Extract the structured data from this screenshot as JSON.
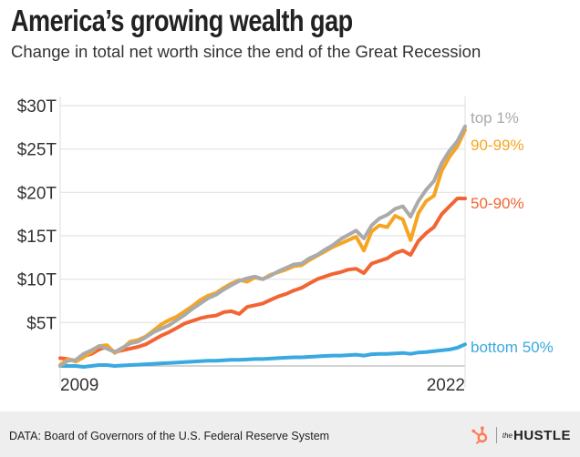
{
  "header": {
    "title": "America’s growing wealth gap",
    "subtitle": "Change in total net worth since the end of the Great Recession"
  },
  "footer": {
    "source": "DATA: Board of Governors of the U.S. Federal Reserve System",
    "brand_small": "the",
    "brand_big": "HUSTLE",
    "brand_icon": "hubspot-sprocket-icon",
    "brand_icon_color": "#ff7a59"
  },
  "chart_data": {
    "type": "line",
    "title": "America’s growing wealth gap",
    "subtitle": "Change in total net worth since the end of the Great Recession",
    "xlabel": "",
    "ylabel": "",
    "x_tick_labels": [
      "2009",
      "2022"
    ],
    "y_tick_labels": [
      "$5T",
      "$10T",
      "$15T",
      "$20T",
      "$25T",
      "$30T"
    ],
    "y_ticks": [
      5,
      10,
      15,
      20,
      25,
      30
    ],
    "xlim": [
      2009.0,
      2022.0
    ],
    "ylim": [
      0,
      30
    ],
    "y_unit": "trillion USD",
    "grid": "horizontal",
    "legend": "inline labels at right end of lines",
    "x": [
      2009.0,
      2009.25,
      2009.5,
      2009.75,
      2010.0,
      2010.25,
      2010.5,
      2010.75,
      2011.0,
      2011.25,
      2011.5,
      2011.75,
      2012.0,
      2012.25,
      2012.5,
      2012.75,
      2013.0,
      2013.25,
      2013.5,
      2013.75,
      2014.0,
      2014.25,
      2014.5,
      2014.75,
      2015.0,
      2015.25,
      2015.5,
      2015.75,
      2016.0,
      2016.25,
      2016.5,
      2016.75,
      2017.0,
      2017.25,
      2017.5,
      2017.75,
      2018.0,
      2018.25,
      2018.5,
      2018.75,
      2019.0,
      2019.25,
      2019.5,
      2019.75,
      2020.0,
      2020.25,
      2020.5,
      2020.75,
      2021.0,
      2021.25,
      2021.5,
      2021.75,
      2022.0
    ],
    "series": [
      {
        "name": "top 1%",
        "color": "#aaaaaa",
        "values": [
          0.0,
          0.6,
          0.7,
          1.4,
          1.8,
          2.3,
          2.0,
          1.6,
          2.1,
          2.6,
          2.8,
          3.3,
          3.9,
          4.3,
          4.7,
          5.3,
          5.9,
          6.6,
          7.2,
          7.8,
          8.2,
          8.8,
          9.3,
          9.8,
          10.1,
          10.3,
          10.0,
          10.4,
          10.9,
          11.3,
          11.7,
          11.8,
          12.4,
          12.8,
          13.4,
          13.9,
          14.6,
          15.1,
          15.6,
          14.7,
          16.2,
          17.0,
          17.4,
          18.1,
          18.4,
          17.2,
          19.0,
          20.3,
          21.3,
          23.4,
          24.8,
          25.9,
          27.6
        ]
      },
      {
        "name": "90-99%",
        "color": "#f7a521",
        "values": [
          0.1,
          0.8,
          0.5,
          1.0,
          1.6,
          2.3,
          2.4,
          1.5,
          2.0,
          2.8,
          3.0,
          3.4,
          4.1,
          4.8,
          5.3,
          5.7,
          6.3,
          6.9,
          7.6,
          8.1,
          8.4,
          9.0,
          9.5,
          9.9,
          9.7,
          10.2,
          10.0,
          10.5,
          10.8,
          11.1,
          11.5,
          11.6,
          12.2,
          12.7,
          13.2,
          13.7,
          14.1,
          14.5,
          14.9,
          13.3,
          15.5,
          16.2,
          16.0,
          17.3,
          16.9,
          14.5,
          17.6,
          19.0,
          19.6,
          22.5,
          24.1,
          25.3,
          27.2
        ]
      },
      {
        "name": "50-90%",
        "color": "#f26532",
        "values": [
          0.9,
          0.8,
          0.6,
          1.1,
          1.4,
          1.9,
          2.2,
          1.6,
          1.8,
          2.0,
          2.2,
          2.5,
          3.0,
          3.5,
          3.9,
          4.4,
          4.9,
          5.2,
          5.5,
          5.7,
          5.8,
          6.2,
          6.3,
          6.0,
          6.8,
          7.0,
          7.2,
          7.6,
          8.0,
          8.3,
          8.7,
          9.0,
          9.5,
          10.0,
          10.3,
          10.6,
          10.8,
          11.1,
          11.2,
          10.7,
          11.8,
          12.1,
          12.4,
          13.0,
          13.3,
          12.8,
          14.4,
          15.3,
          16.0,
          17.5,
          18.4,
          19.3,
          19.3
        ]
      },
      {
        "name": "bottom 50%",
        "color": "#3aa9e0",
        "values": [
          0.0,
          0.0,
          0.0,
          -0.1,
          0.0,
          0.1,
          0.1,
          0.0,
          0.05,
          0.1,
          0.15,
          0.2,
          0.25,
          0.3,
          0.35,
          0.4,
          0.45,
          0.5,
          0.55,
          0.6,
          0.6,
          0.65,
          0.7,
          0.7,
          0.75,
          0.8,
          0.8,
          0.85,
          0.9,
          0.95,
          1.0,
          1.0,
          1.05,
          1.1,
          1.15,
          1.2,
          1.2,
          1.25,
          1.3,
          1.2,
          1.35,
          1.4,
          1.4,
          1.45,
          1.5,
          1.4,
          1.55,
          1.6,
          1.7,
          1.8,
          1.9,
          2.1,
          2.5
        ]
      }
    ]
  }
}
